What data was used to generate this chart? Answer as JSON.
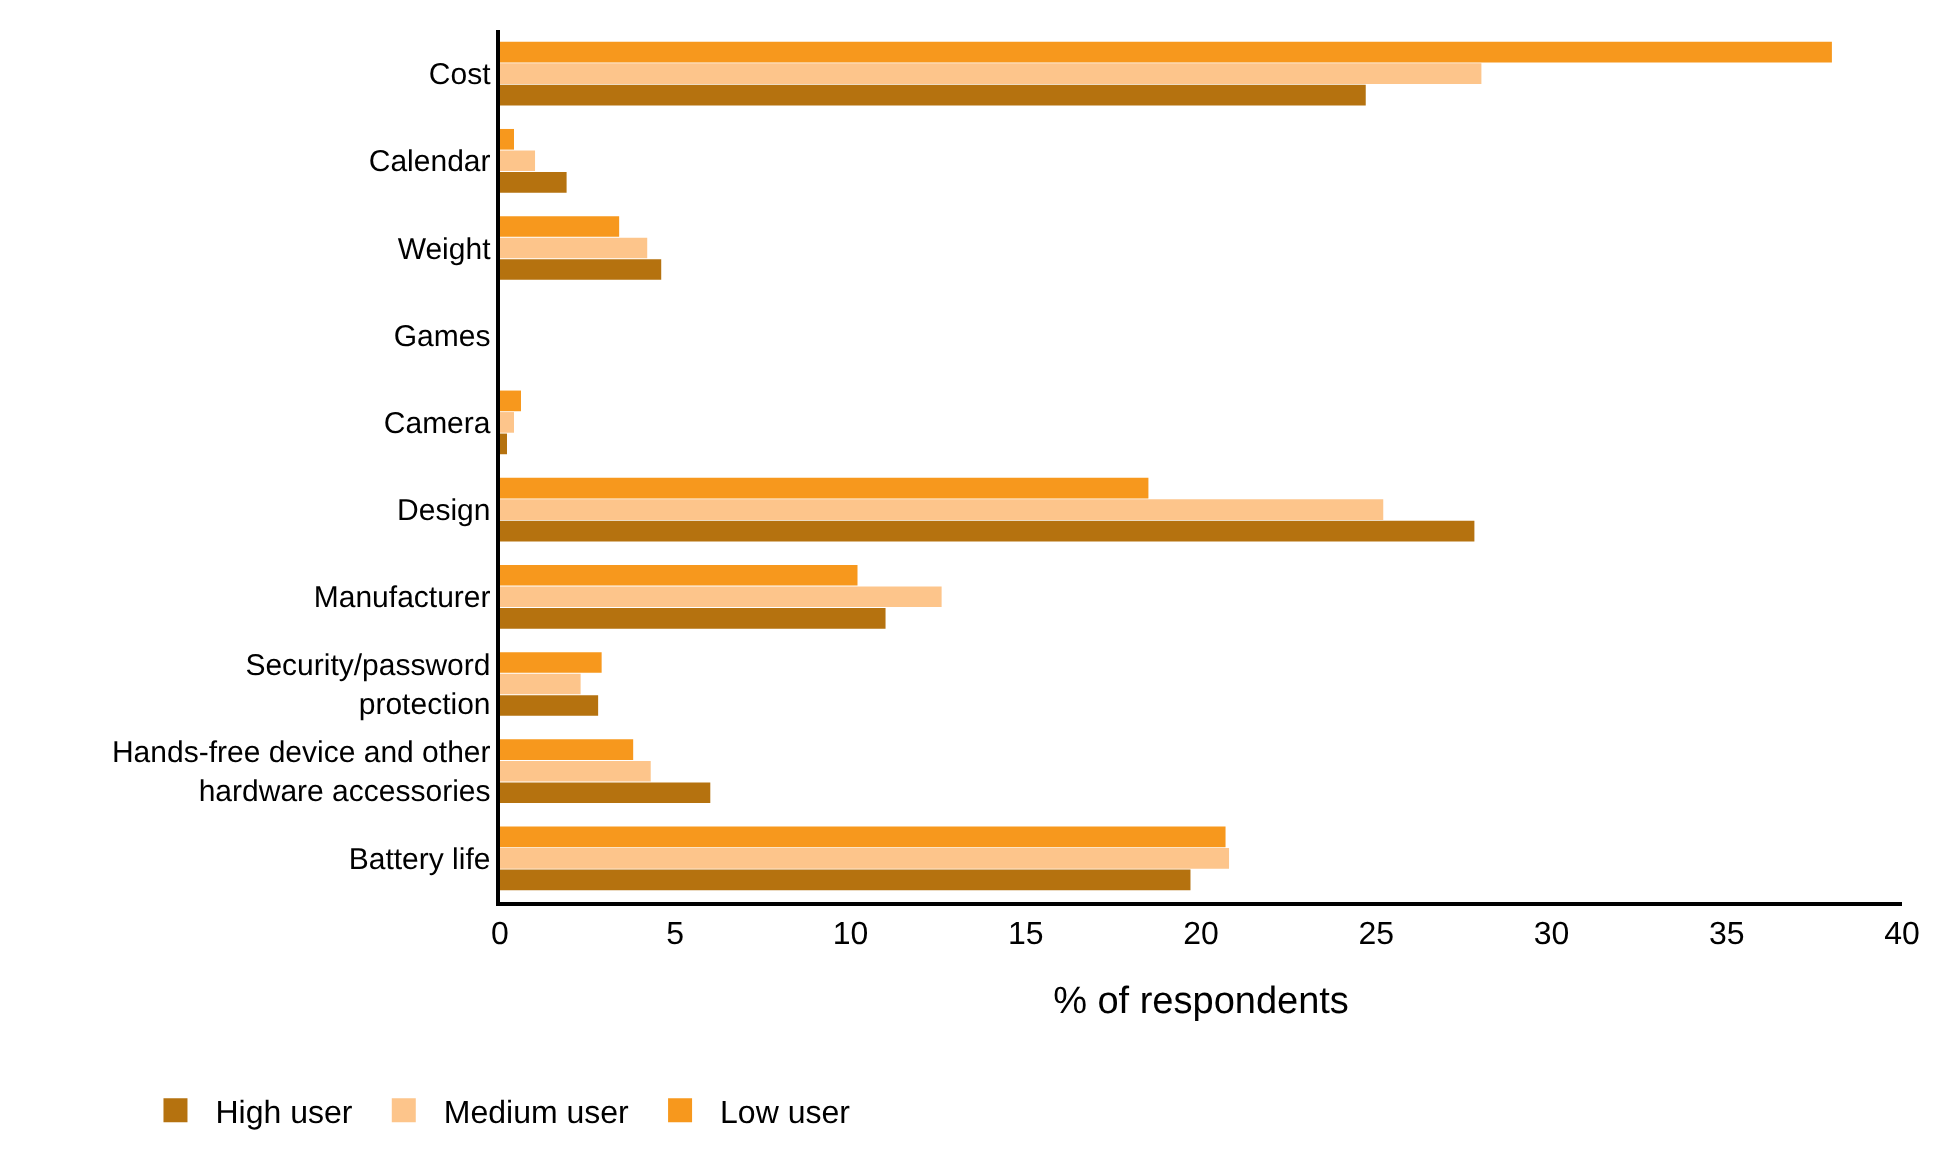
{
  "chart_data": {
    "type": "bar",
    "orientation": "horizontal",
    "xlabel": "% of respondents",
    "categories": [
      "Cost",
      "Calendar",
      "Weight",
      "Games",
      "Camera",
      "Design",
      "Manufacturer",
      "Security/password protection",
      "Hands-free device and other hardware accessories",
      "Battery life"
    ],
    "series": [
      {
        "name": "Low user",
        "color": "#f7981d",
        "values": [
          38.0,
          0.4,
          3.4,
          0,
          0.6,
          18.5,
          10.2,
          2.9,
          3.8,
          20.7
        ]
      },
      {
        "name": "Medium user",
        "color": "#fdc58b",
        "values": [
          28.0,
          1.0,
          4.2,
          0,
          0.4,
          25.2,
          12.6,
          2.3,
          4.3,
          20.8
        ]
      },
      {
        "name": "High user",
        "color": "#b5720f",
        "values": [
          24.7,
          1.9,
          4.6,
          0,
          0.2,
          27.8,
          11.0,
          2.8,
          6.0,
          19.7
        ]
      }
    ],
    "xlim": [
      0,
      40
    ],
    "xticks": [
      0,
      5,
      10,
      15,
      20,
      25,
      30,
      35,
      40
    ],
    "grid": false,
    "legend": "bottom left"
  }
}
